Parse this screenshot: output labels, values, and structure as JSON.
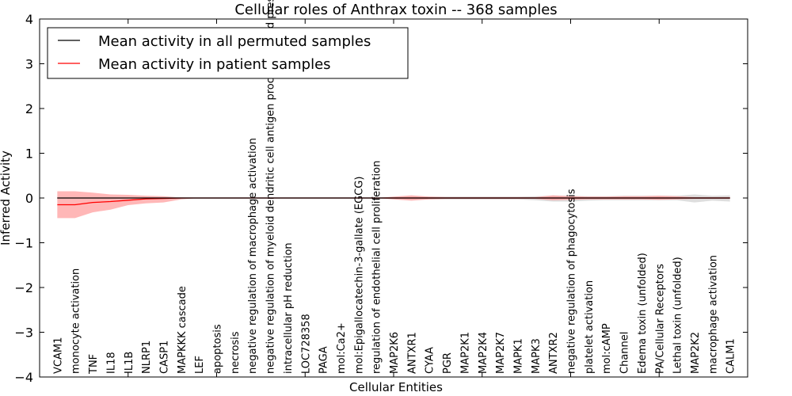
{
  "chart_data": {
    "type": "line",
    "title": "Cellular roles of Anthrax toxin -- 368 samples",
    "xlabel": "Cellular Entities",
    "ylabel": "Inferred Activity",
    "ylim": [
      -4,
      4
    ],
    "xlim": [
      0,
      40
    ],
    "yticks": [
      4,
      3,
      2,
      1,
      0,
      -1,
      -2,
      -3,
      -4
    ],
    "ytick_labels": [
      "4",
      "3",
      "2",
      "1",
      "0",
      "−1",
      "−2",
      "−3",
      "−4"
    ],
    "legend_placement": "top-left",
    "colors": {
      "permuted": "#000000",
      "patient": "#ff0000",
      "permuted_band": "#c8c8c8",
      "patient_band": "#ff9999"
    },
    "categories": [
      "VCAM1",
      "monocyte activation",
      "TNF",
      "IL18",
      "IL1B",
      "NLRP1",
      "CASP1",
      "MAPKKK cascade",
      "LEF",
      "apoptosis",
      "necrosis",
      "negative regulation of macrophage activation",
      "negative regulation of myeloid dendritic cell antigen processing and presentation",
      "intracellular pH reduction",
      "LOC728358",
      "PAGA",
      "mol:Ca2+",
      "mol:Epigallocatechin-3-gallate (EGCG)",
      "regulation of endothelial cell proliferation",
      "MAP2K6",
      "ANTXR1",
      "CYAA",
      "PGR",
      "MAP2K1",
      "MAP2K4",
      "MAP2K7",
      "MAPK1",
      "MAPK3",
      "ANTXR2",
      "negative regulation of phagocytosis",
      "platelet activation",
      "mol:cAMP",
      "Channel",
      "Edema toxin (unfolded)",
      "PA/Cellular Receptors",
      "Lethal toxin (unfolded)",
      "MAP2K2",
      "macrophage activation",
      "CALM1"
    ],
    "series": [
      {
        "name": "Mean activity in all permuted samples",
        "values": [
          0,
          0,
          0,
          0,
          0,
          0,
          0,
          0,
          0,
          0,
          0,
          0,
          0,
          0,
          0,
          0,
          0,
          0,
          0,
          0,
          0,
          0,
          0,
          0,
          0,
          0,
          0,
          0,
          0,
          0,
          0,
          0,
          0,
          0,
          0,
          0,
          0,
          0,
          0
        ],
        "upper": [
          0.01,
          0.01,
          0.01,
          0.01,
          0.01,
          0.01,
          0.01,
          0.01,
          0.01,
          0.01,
          0.01,
          0.01,
          0.01,
          0.01,
          0.01,
          0.01,
          0.01,
          0.01,
          0.01,
          0.02,
          0.03,
          0.03,
          0.03,
          0.03,
          0.03,
          0.03,
          0.03,
          0.04,
          0.05,
          0.05,
          0.04,
          0.04,
          0.05,
          0.05,
          0.05,
          0.05,
          0.08,
          0.05,
          0.06
        ],
        "lower": [
          -0.01,
          -0.01,
          -0.01,
          -0.01,
          -0.01,
          -0.01,
          -0.01,
          -0.01,
          -0.01,
          -0.01,
          -0.01,
          -0.01,
          -0.01,
          -0.01,
          -0.01,
          -0.01,
          -0.01,
          -0.01,
          -0.01,
          -0.02,
          -0.03,
          -0.03,
          -0.03,
          -0.03,
          -0.03,
          -0.03,
          -0.03,
          -0.05,
          -0.08,
          -0.08,
          -0.06,
          -0.05,
          -0.05,
          -0.05,
          -0.05,
          -0.05,
          -0.1,
          -0.06,
          -0.08
        ]
      },
      {
        "name": "Mean activity in patient samples",
        "values": [
          -0.15,
          -0.15,
          -0.1,
          -0.08,
          -0.05,
          -0.02,
          -0.01,
          0,
          0,
          0,
          0,
          0,
          0,
          0,
          0,
          0,
          0,
          0,
          0,
          0,
          0,
          0,
          0,
          0,
          0,
          0,
          0,
          0,
          0,
          0,
          0,
          0,
          0,
          0,
          0,
          0,
          0,
          0,
          0
        ],
        "upper": [
          0.15,
          0.15,
          0.12,
          0.08,
          0.07,
          0.05,
          0.04,
          0.01,
          0,
          0,
          0,
          0,
          0,
          0,
          0,
          0,
          0,
          0,
          0,
          0.03,
          0.06,
          0.03,
          0.02,
          0.02,
          0.02,
          0.02,
          0.02,
          0.02,
          0.06,
          0.04,
          0.03,
          0.03,
          0.04,
          0.04,
          0.05,
          0.04,
          0.02,
          0.02,
          0.02
        ],
        "lower": [
          -0.45,
          -0.45,
          -0.32,
          -0.26,
          -0.16,
          -0.12,
          -0.1,
          -0.03,
          0,
          0,
          0,
          0,
          0,
          0,
          0,
          0,
          0,
          0,
          0,
          -0.03,
          -0.06,
          -0.03,
          -0.02,
          -0.02,
          -0.02,
          -0.02,
          -0.02,
          -0.02,
          -0.05,
          -0.04,
          -0.03,
          -0.03,
          -0.03,
          -0.03,
          -0.04,
          -0.03,
          -0.02,
          -0.02,
          -0.02
        ]
      }
    ]
  }
}
